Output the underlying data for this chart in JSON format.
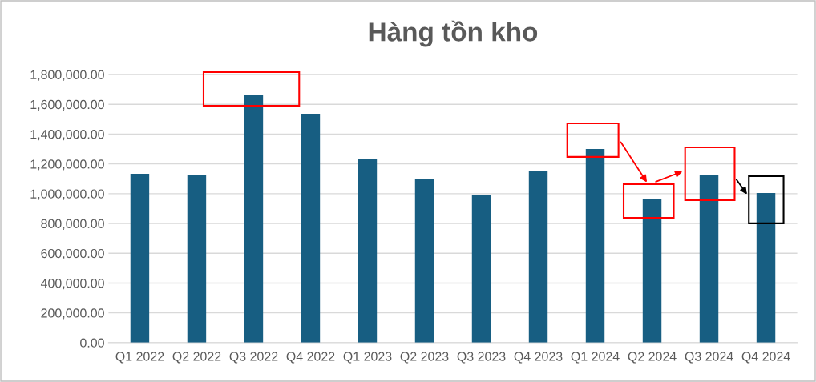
{
  "chart_data": {
    "type": "bar",
    "title": "Hàng tồn kho",
    "categories": [
      "Q1 2022",
      "Q2 2022",
      "Q3 2022",
      "Q4 2022",
      "Q1 2023",
      "Q2 2023",
      "Q3 2023",
      "Q4 2023",
      "Q1 2024",
      "Q2 2024",
      "Q3 2024",
      "Q4 2024"
    ],
    "values": [
      1134000,
      1128000,
      1660000,
      1537000,
      1230000,
      1101000,
      989000,
      1155000,
      1300000,
      967000,
      1123000,
      1005000
    ],
    "color": "#175e82",
    "ylim": [
      0,
      1800000
    ],
    "yticks": [
      {
        "value": 0,
        "label": "0.00"
      },
      {
        "value": 200000,
        "label": "200,000.00"
      },
      {
        "value": 400000,
        "label": "400,000.00"
      },
      {
        "value": 600000,
        "label": "600,000.00"
      },
      {
        "value": 800000,
        "label": "800,000.00"
      },
      {
        "value": 1000000,
        "label": "1,000,000.00"
      },
      {
        "value": 1200000,
        "label": "1,200,000.00"
      },
      {
        "value": 1400000,
        "label": "1,400,000.00"
      },
      {
        "value": 1600000,
        "label": "1,600,000.00"
      },
      {
        "value": 1800000,
        "label": "1,800,000.00"
      }
    ],
    "grid": "y",
    "legend": false
  }
}
